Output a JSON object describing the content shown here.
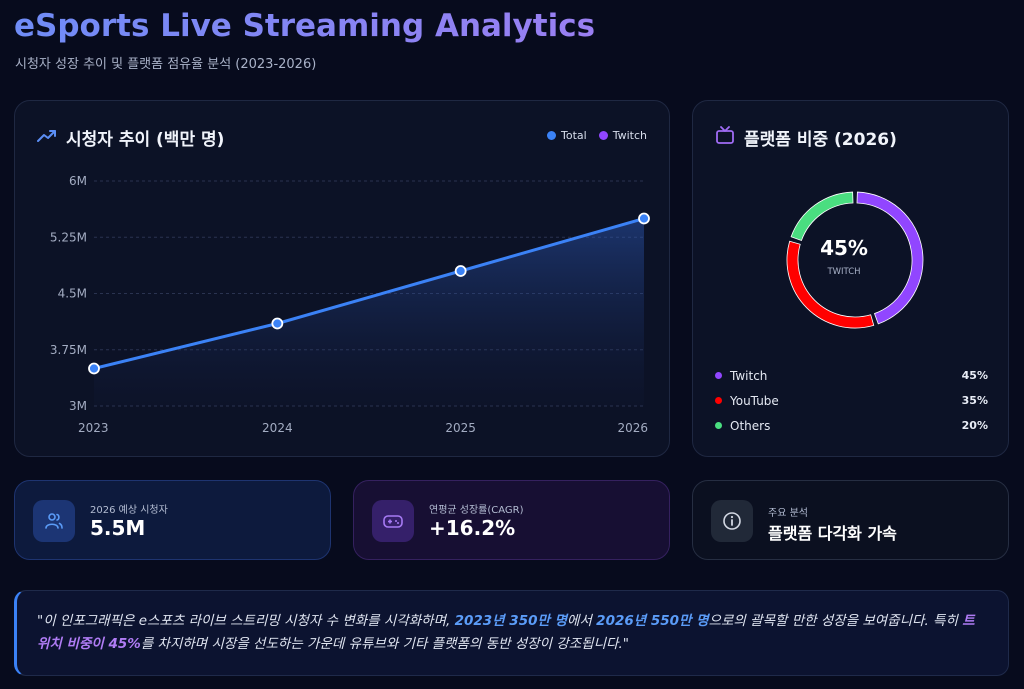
{
  "header": {
    "title": "eSports Live Streaming Analytics",
    "subtitle": "시청자 성장 추이 및 플랫폼 점유율 분석 (2023-2026)"
  },
  "colors": {
    "total": "#3b82f6",
    "twitch": "#9146ff",
    "youtube": "#ff0000",
    "others": "#4ade80",
    "accent": "#7f8cf4"
  },
  "line_card": {
    "title": "시청자 추이 (백만 명)",
    "icon": "trending-up-icon",
    "legend": [
      {
        "label": "Total",
        "color": "#3b82f6"
      },
      {
        "label": "Twitch",
        "color": "#9146ff"
      }
    ]
  },
  "pie_card": {
    "title": "플랫폼 비중 (2026)",
    "icon": "tv-icon",
    "center_value": "45%",
    "center_label": "TWITCH",
    "legend": [
      {
        "label": "Twitch",
        "pct": "45%",
        "color": "#9146ff"
      },
      {
        "label": "YouTube",
        "pct": "35%",
        "color": "#ff0000"
      },
      {
        "label": "Others",
        "pct": "20%",
        "color": "#4ade80"
      }
    ]
  },
  "stats": [
    {
      "label": "2026 예상 시청자",
      "value": "5.5M",
      "icon": "users-icon"
    },
    {
      "label": "연평균 성장률(CAGR)",
      "value": "+16.2%",
      "icon": "gamepad-icon"
    },
    {
      "label": "주요 분석",
      "value": "플랫폼 다각화 가속",
      "icon": "info-icon"
    }
  ],
  "note": {
    "p1": "\"이 인포그래픽은 e스포츠 라이브 스트리밍 시청자 수 변화를 시각화하며, ",
    "h1": "2023년 350만 명",
    "p2": "에서 ",
    "h2": "2026년 550만 명",
    "p3": "으로의 괄목할 만한 성장을 보여줍니다. 특히 ",
    "h3": "트위치 비중이 45%",
    "p4": "를 차지하며 시장을 선도하는 가운데 유튜브와 기타 플랫폼의 동반 성장이 강조됩니다.\""
  },
  "chart_data": [
    {
      "type": "line",
      "title": "시청자 추이 (백만 명)",
      "x": [
        "2023",
        "2024",
        "2025",
        "2026"
      ],
      "series": [
        {
          "name": "Total",
          "values": [
            3.5,
            4.1,
            4.8,
            5.5
          ]
        }
      ],
      "yticks": [
        "3M",
        "3.75M",
        "4.5M",
        "5.25M",
        "6M"
      ],
      "ylim": [
        3,
        6
      ],
      "grid": true,
      "legend": "top-right"
    },
    {
      "type": "pie",
      "title": "플랫폼 비중 (2026)",
      "categories": [
        "Twitch",
        "YouTube",
        "Others"
      ],
      "values": [
        45,
        35,
        20
      ],
      "legend": "bottom"
    }
  ]
}
